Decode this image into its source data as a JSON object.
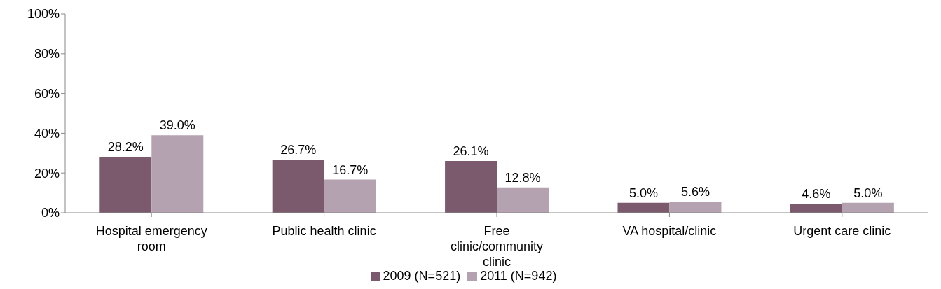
{
  "chart_data": {
    "type": "bar",
    "categories": [
      "Hospital emergency room",
      "Public health clinic",
      "Free clinic/community clinic",
      "VA hospital/clinic",
      "Urgent care clinic"
    ],
    "series": [
      {
        "name": "2009 (N=521)",
        "color": "#7b5a6e",
        "values": [
          28.2,
          26.7,
          26.1,
          5.0,
          4.6
        ],
        "value_labels": [
          "28.2%",
          "26.7%",
          "26.1%",
          "5.0%",
          "4.6%"
        ]
      },
      {
        "name": "2011 (N=942)",
        "color": "#b4a2b1",
        "values": [
          39.0,
          16.7,
          12.8,
          5.6,
          5.0
        ],
        "value_labels": [
          "39.0%",
          "16.7%",
          "12.8%",
          "5.6%",
          "5.0%"
        ]
      }
    ],
    "ylim": [
      0,
      100
    ],
    "yticks": [
      {
        "value": 0,
        "label": "0%"
      },
      {
        "value": 20,
        "label": "20%"
      },
      {
        "value": 40,
        "label": "40%"
      },
      {
        "value": 60,
        "label": "60%"
      },
      {
        "value": 80,
        "label": "80%"
      },
      {
        "value": 100,
        "label": "100%"
      }
    ],
    "grid": false,
    "legend": "bottom"
  }
}
